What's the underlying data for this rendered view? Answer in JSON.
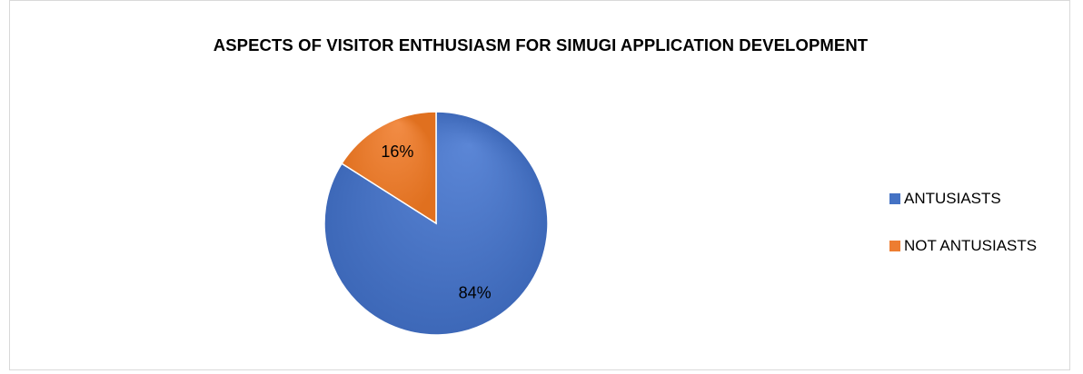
{
  "chart_data": {
    "type": "pie",
    "title": "ASPECTS OF VISITOR ENTHUSIASM FOR SIMUGI APPLICATION DEVELOPMENT",
    "slices": [
      {
        "name": "ANTUSIASTS",
        "value": 84,
        "label": "84%",
        "color": "#4472c4"
      },
      {
        "name": "NOT ANTUSIASTS",
        "value": 16,
        "label": "16%",
        "color": "#ed7d31"
      }
    ],
    "legend_position": "right"
  }
}
